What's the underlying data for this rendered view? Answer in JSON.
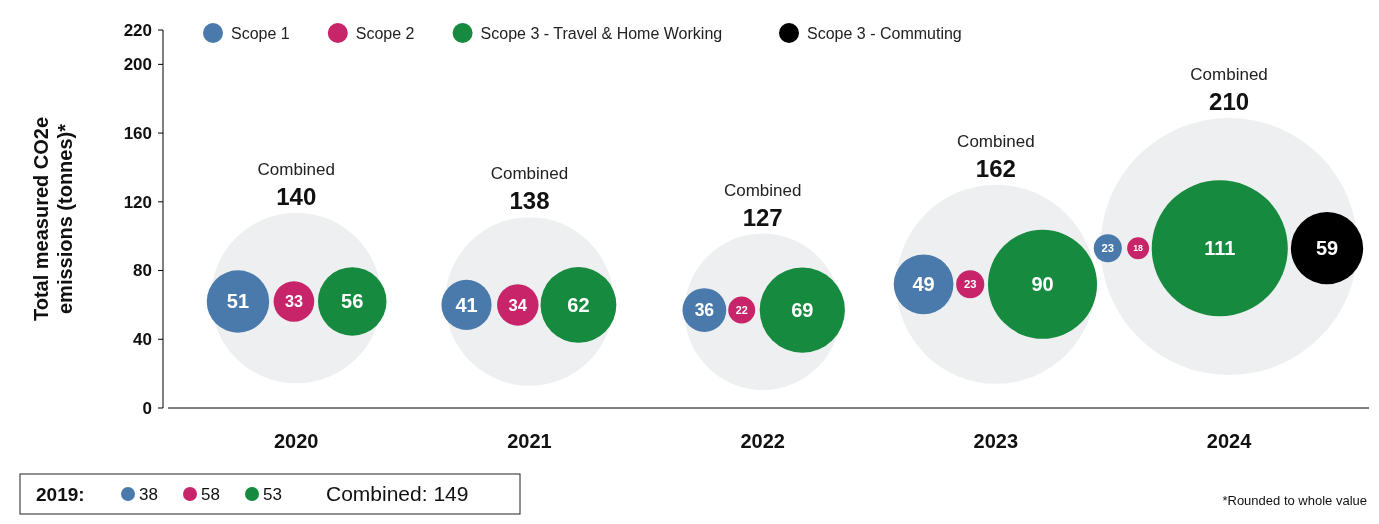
{
  "chart_data": {
    "type": "bubble",
    "ylabel": "Total measured CO2e emissions (tonnes)*",
    "ylim": [
      0,
      220
    ],
    "yticks": [
      0,
      40,
      80,
      120,
      160,
      200,
      220
    ],
    "xlim": [
      2019.45,
      2024.6
    ],
    "xticks": [
      2020,
      2021,
      2022,
      2023,
      2024
    ],
    "legend": "top",
    "series": [
      {
        "name": "Combined",
        "color": "#eeeff1",
        "x": [
          2020,
          2021,
          2022,
          2023,
          2024
        ],
        "values": [
          64,
          62,
          56,
          72,
          94
        ],
        "sizes": [
          0.44,
          0.43,
          0.37,
          0.6,
          1
        ]
      },
      {
        "name": "Scope 1",
        "color": "#4a7aab",
        "x": [
          2019.75,
          2020.73,
          2021.75,
          2022.69,
          2023.48
        ],
        "values": [
          62,
          60,
          57,
          72,
          93
        ],
        "sizes": [
          0.059,
          0.038,
          0.029,
          0.054,
          0.012
        ]
      },
      {
        "name": "Scope 2",
        "color": "#c8246a",
        "x": [
          2019.99,
          2020.95,
          2021.91,
          2022.89,
          2023.61
        ],
        "values": [
          62,
          60,
          57,
          72,
          93
        ],
        "sizes": [
          0.025,
          0.026,
          0.011,
          0.012,
          0.0073
        ]
      },
      {
        "name": "Scope 3 - Travel & Home Working",
        "color": "#168a3e",
        "x": [
          2020.24,
          2021.21,
          2022.17,
          2023.2,
          2023.96
        ],
        "values": [
          62,
          60,
          57,
          72,
          93
        ],
        "sizes": [
          0.071,
          0.087,
          0.11,
          0.18,
          0.28
        ]
      },
      {
        "name": "Scope 3 - Commuting",
        "color": "#000000",
        "x": [
          2024.42
        ],
        "values": [
          93
        ],
        "sizes": [
          0.079
        ]
      }
    ],
    "annotations": [
      "140",
      "138",
      "127",
      "162",
      "210",
      {
        "text": "51",
        "x": 2019.75,
        "y": 62
      },
      {
        "text": "33",
        "x": 2019.99,
        "y": 62
      },
      {
        "text": "56",
        "x": 2020.24,
        "y": 62
      },
      {
        "text": "41",
        "x": 2020.73,
        "y": 60
      },
      {
        "text": "34",
        "x": 2020.95,
        "y": 60
      },
      {
        "text": "62",
        "x": 2021.21,
        "y": 60
      },
      {
        "text": "36",
        "x": 2021.75,
        "y": 57
      },
      {
        "text": "22",
        "x": 2021.91,
        "y": 57
      },
      {
        "text": "69",
        "x": 2022.17,
        "y": 57
      },
      {
        "text": "49",
        "x": 2022.69,
        "y": 72
      },
      {
        "text": "23",
        "x": 2022.89,
        "y": 72
      },
      {
        "text": "90",
        "x": 2023.2,
        "y": 72
      },
      {
        "text": "23",
        "x": 2023.48,
        "y": 93
      },
      {
        "text": "18",
        "x": 2023.61,
        "y": 93
      },
      {
        "text": "111",
        "x": 2023.96,
        "y": 93
      },
      {
        "text": "59",
        "x": 2024.42,
        "y": 93
      },
      "2019:",
      "38",
      "58",
      "53",
      "Combined: 149",
      "*Rounded to whole value"
    ]
  }
}
